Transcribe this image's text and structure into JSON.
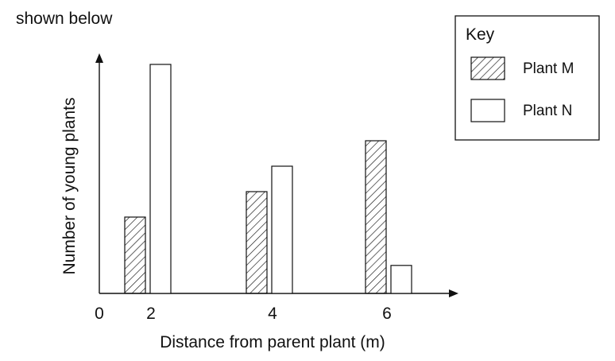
{
  "caption": "shown below",
  "chart_data": {
    "type": "bar",
    "title": "",
    "xlabel": "Distance from parent plant (m)",
    "ylabel": "Number of young plants",
    "x_ticks": [
      "0",
      "2",
      "4",
      "6"
    ],
    "categories": [
      "2",
      "4",
      "6"
    ],
    "ylim": [
      0,
      9
    ],
    "grid": false,
    "legend": {
      "title": "Key",
      "position": "top-right"
    },
    "series": [
      {
        "name": "Plant M",
        "pattern": "hatched",
        "color": "#111111",
        "values": [
          3,
          4,
          6
        ]
      },
      {
        "name": "Plant N",
        "pattern": "open",
        "color": "#111111",
        "values": [
          9,
          5,
          1.1
        ]
      }
    ]
  }
}
